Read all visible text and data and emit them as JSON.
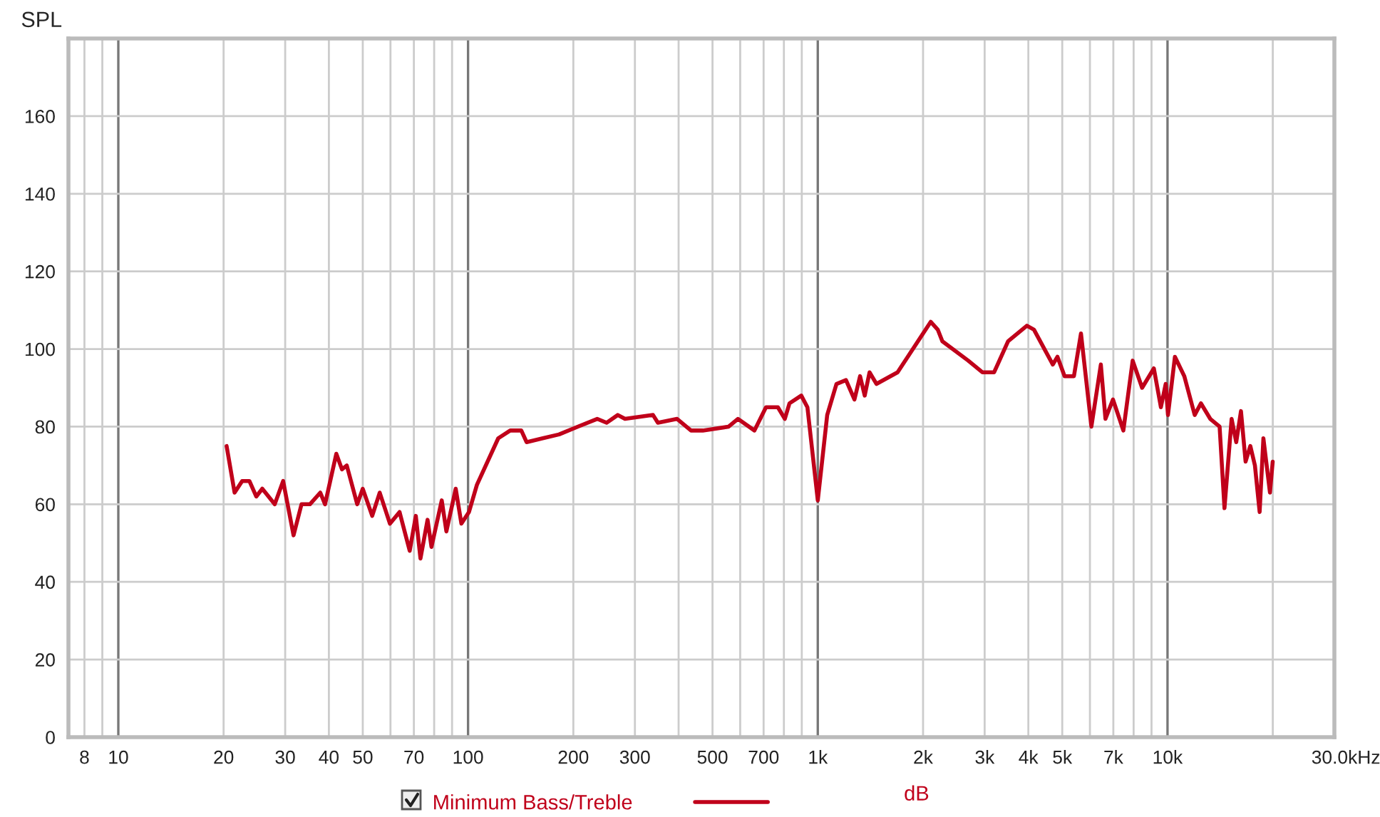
{
  "chart_data": {
    "type": "line",
    "ylabel": "SPL",
    "annotations": [
      "dB"
    ],
    "xlim": [
      7.2,
      30000
    ],
    "ylim": [
      0,
      180
    ],
    "xticks": [
      8,
      {
        "value": 9,
        "label": null
      },
      10,
      20,
      30,
      40,
      50,
      {
        "value": 60,
        "label": null
      },
      70,
      {
        "value": 80,
        "label": null
      },
      {
        "value": 90,
        "label": null
      },
      100,
      200,
      300,
      {
        "value": 400,
        "label": null
      },
      500,
      {
        "value": 600,
        "label": null
      },
      700,
      {
        "value": 800,
        "label": null
      },
      {
        "value": 900,
        "label": null
      },
      {
        "value": 1000,
        "label": "1k"
      },
      {
        "value": 2000,
        "label": "2k"
      },
      {
        "value": 3000,
        "label": "3k"
      },
      {
        "value": 4000,
        "label": "4k"
      },
      {
        "value": 5000,
        "label": "5k"
      },
      {
        "value": 6000,
        "label": null
      },
      {
        "value": 7000,
        "label": "7k"
      },
      {
        "value": 8000,
        "label": null
      },
      {
        "value": 9000,
        "label": null
      },
      {
        "value": 10000,
        "label": "10k"
      },
      {
        "value": 20000,
        "label": null
      },
      {
        "value": 30000,
        "label": "30.0k"
      }
    ],
    "xlabel": "Hz",
    "yticks": [
      0,
      20,
      40,
      60,
      80,
      100,
      120,
      140,
      160
    ],
    "log": "x",
    "grid": true,
    "legend": "bottom",
    "line_style": "solid",
    "marker": "none",
    "series": [
      {
        "name": "Minimum Bass/Treble",
        "color": "#c0001a",
        "x": [
          20.4,
          21.5,
          22.6,
          23.7,
          24.8,
          25.8,
          28,
          29.6,
          31.7,
          33.4,
          35.3,
          37.8,
          39,
          42,
          43.6,
          45,
          48.2,
          50,
          53.2,
          55.9,
          59.8,
          63.7,
          68.1,
          70.9,
          73.1,
          76.6,
          78.6,
          84.1,
          86.7,
          92.2,
          95.7,
          100.6,
          106,
          122,
          132,
          142,
          147,
          182,
          206,
          234,
          249,
          268,
          281,
          338,
          349,
          396,
          434,
          469,
          556,
          591,
          659,
          711,
          769,
          805,
          830,
          897,
          934,
          1000,
          1064,
          1131,
          1204,
          1273,
          1321,
          1362,
          1406,
          1472,
          1691,
          2103,
          2203,
          2271,
          2693,
          2955,
          3193,
          3501,
          3962,
          4150,
          4699,
          4845,
          5078,
          5400,
          5657,
          6058,
          6447,
          6646,
          6984,
          7477,
          7950,
          8460,
          9140,
          9574,
          9880,
          10030,
          10500,
          11170,
          11960,
          12460,
          13250,
          14090,
          14550,
          15250,
          15720,
          16220,
          16720,
          17250,
          17780,
          18340,
          18800,
          19630,
          19990
        ],
        "values": [
          75,
          63,
          66,
          66,
          62,
          64,
          60,
          66,
          52,
          60,
          60,
          63,
          60,
          73,
          69,
          70,
          60,
          64,
          57,
          63,
          55,
          58,
          48,
          57,
          46,
          56,
          49,
          61,
          53,
          64,
          55,
          58,
          65,
          77,
          79,
          79,
          76,
          78,
          80,
          82,
          81,
          83,
          82,
          83,
          81,
          82,
          79,
          79,
          80,
          82,
          79,
          85,
          85,
          82,
          86,
          88,
          85,
          61,
          83,
          91,
          92,
          87,
          93,
          88,
          94,
          91,
          94,
          107,
          105,
          102,
          97,
          94,
          94,
          102,
          106,
          105,
          96,
          98,
          93,
          93,
          104,
          80,
          96,
          82,
          87,
          79,
          97,
          90,
          95,
          85,
          91,
          83,
          98,
          93,
          83,
          86,
          82,
          80,
          59,
          82,
          76,
          84,
          71,
          75,
          70,
          58,
          77,
          63,
          71
        ]
      }
    ]
  }
}
